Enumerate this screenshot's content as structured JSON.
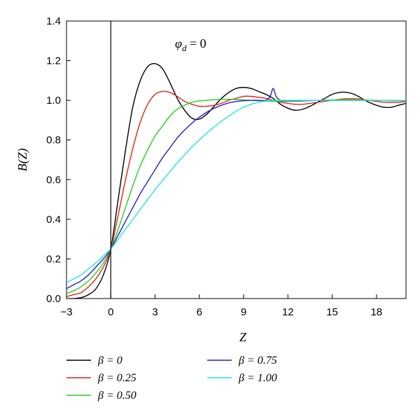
{
  "chart_data": {
    "type": "line",
    "xlabel": "Z",
    "ylabel": "B(Z)",
    "xlim": [
      -3,
      20
    ],
    "ylim": [
      0,
      1.4
    ],
    "x_ticks": [
      "-3",
      "0",
      "3",
      "6",
      "9",
      "12",
      "15",
      "18"
    ],
    "y_ticks": [
      "0.0",
      "0.2",
      "0.4",
      "0.6",
      "0.8",
      "1.0",
      "1.2",
      "1.4"
    ],
    "annotation": {
      "symbol": "φ",
      "subscript": "d",
      "rest": " = 0"
    },
    "grid": false,
    "legend_position": "below plot",
    "series": [
      {
        "name": "β = 0",
        "color": "#000000",
        "x": [
          -3,
          -2.5,
          -2,
          -1.5,
          -1,
          -0.5,
          0,
          0.5,
          1,
          1.5,
          2,
          2.5,
          3,
          3.5,
          4,
          4.5,
          5,
          5.5,
          6,
          6.5,
          7,
          7.5,
          8,
          8.5,
          9,
          9.5,
          10,
          10.5,
          11,
          11.5,
          12,
          12.5,
          13,
          13.5,
          14,
          14.5,
          15,
          15.5,
          16,
          16.5,
          17,
          17.5,
          18,
          18.5,
          19,
          19.5,
          20
        ],
        "y": [
          0.0,
          0.0,
          0.005,
          0.02,
          0.05,
          0.12,
          0.25,
          0.5,
          0.75,
          0.97,
          1.1,
          1.17,
          1.185,
          1.16,
          1.09,
          1.01,
          0.95,
          0.91,
          0.905,
          0.93,
          0.97,
          1.01,
          1.04,
          1.06,
          1.065,
          1.06,
          1.045,
          1.03,
          1.01,
          0.98,
          0.96,
          0.95,
          0.955,
          0.97,
          0.99,
          1.01,
          1.03,
          1.04,
          1.04,
          1.03,
          1.01,
          0.99,
          0.975,
          0.965,
          0.965,
          0.975,
          0.985
        ]
      },
      {
        "name": "β = 0.25",
        "color": "#e8211b",
        "x": [
          -3,
          -2.5,
          -2,
          -1.5,
          -1,
          -0.5,
          0,
          0.5,
          1,
          1.5,
          2,
          2.5,
          3,
          3.5,
          4,
          4.5,
          5,
          5.5,
          6,
          6.5,
          7,
          7.5,
          8,
          8.5,
          9,
          9.5,
          10,
          10.5,
          11,
          11.5,
          12,
          12.5,
          13,
          13.5,
          14,
          14.5,
          15,
          15.5,
          16,
          16.5,
          17,
          17.5,
          18,
          18.5,
          19,
          19.5,
          20
        ],
        "y": [
          0.01,
          0.02,
          0.03,
          0.06,
          0.1,
          0.16,
          0.25,
          0.42,
          0.6,
          0.76,
          0.89,
          0.98,
          1.03,
          1.045,
          1.04,
          1.02,
          0.995,
          0.98,
          0.97,
          0.97,
          0.975,
          0.985,
          1.0,
          1.01,
          1.02,
          1.02,
          1.015,
          1.01,
          1.0,
          0.99,
          0.985,
          0.98,
          0.98,
          0.985,
          0.99,
          0.995,
          1.0,
          1.005,
          1.008,
          1.008,
          1.005,
          1.0,
          0.995,
          0.99,
          0.99,
          0.99,
          0.995
        ]
      },
      {
        "name": "β = 0.50",
        "color": "#22d11c",
        "x": [
          -3,
          -2.5,
          -2,
          -1.5,
          -1,
          -0.5,
          0,
          0.5,
          1,
          1.5,
          2,
          2.5,
          3,
          3.5,
          4,
          4.5,
          5,
          5.5,
          6,
          6.5,
          7,
          7.5,
          8,
          8.5,
          9,
          9.5,
          10,
          11,
          12,
          13,
          14,
          15,
          16,
          17,
          18,
          19,
          20
        ],
        "y": [
          0.025,
          0.04,
          0.06,
          0.09,
          0.13,
          0.18,
          0.25,
          0.35,
          0.46,
          0.57,
          0.67,
          0.75,
          0.82,
          0.87,
          0.92,
          0.955,
          0.975,
          0.99,
          0.997,
          1.0,
          1.003,
          1.005,
          1.005,
          1.004,
          1.002,
          1.0,
          0.998,
          0.995,
          0.995,
          0.997,
          1.0,
          1.002,
          1.003,
          1.002,
          1.0,
          0.998,
          0.998
        ]
      },
      {
        "name": "β = 0.75",
        "color": "#2222c8",
        "x": [
          -3,
          -2.5,
          -2,
          -1.5,
          -1,
          -0.5,
          0,
          0.5,
          1,
          1.5,
          2,
          2.5,
          3,
          3.5,
          4,
          4.5,
          5,
          5.5,
          6,
          6.5,
          7,
          7.5,
          8,
          8.5,
          9,
          9.5,
          10,
          10.5,
          10.8,
          11,
          11.2,
          11.5,
          12,
          13,
          14,
          15,
          16,
          17,
          18,
          19,
          20
        ],
        "y": [
          0.05,
          0.07,
          0.09,
          0.12,
          0.16,
          0.2,
          0.25,
          0.32,
          0.39,
          0.46,
          0.53,
          0.59,
          0.65,
          0.71,
          0.76,
          0.81,
          0.85,
          0.885,
          0.915,
          0.94,
          0.96,
          0.975,
          0.987,
          0.994,
          0.998,
          1.0,
          1.0,
          1.0,
          1.02,
          1.06,
          1.02,
          1.0,
          0.998,
          0.998,
          1.0,
          1.0,
          1.0,
          1.0,
          1.0,
          1.0,
          1.0
        ]
      },
      {
        "name": "β = 1.00",
        "color": "#22e6e0",
        "x": [
          -3,
          -2.5,
          -2,
          -1.5,
          -1,
          -0.5,
          0,
          0.5,
          1,
          1.5,
          2,
          2.5,
          3,
          3.5,
          4,
          4.5,
          5,
          5.5,
          6,
          6.5,
          7,
          7.5,
          8,
          8.5,
          9,
          9.5,
          10,
          10.5,
          11,
          12,
          13,
          14,
          15,
          16,
          17,
          18,
          19,
          20
        ],
        "y": [
          0.08,
          0.1,
          0.12,
          0.15,
          0.18,
          0.215,
          0.25,
          0.3,
          0.35,
          0.4,
          0.45,
          0.5,
          0.55,
          0.595,
          0.64,
          0.685,
          0.725,
          0.765,
          0.8,
          0.835,
          0.865,
          0.895,
          0.92,
          0.945,
          0.965,
          0.98,
          0.99,
          0.996,
          1.0,
          1.0,
          1.0,
          1.0,
          1.0,
          1.0,
          1.0,
          1.0,
          1.0,
          1.0
        ]
      }
    ]
  }
}
